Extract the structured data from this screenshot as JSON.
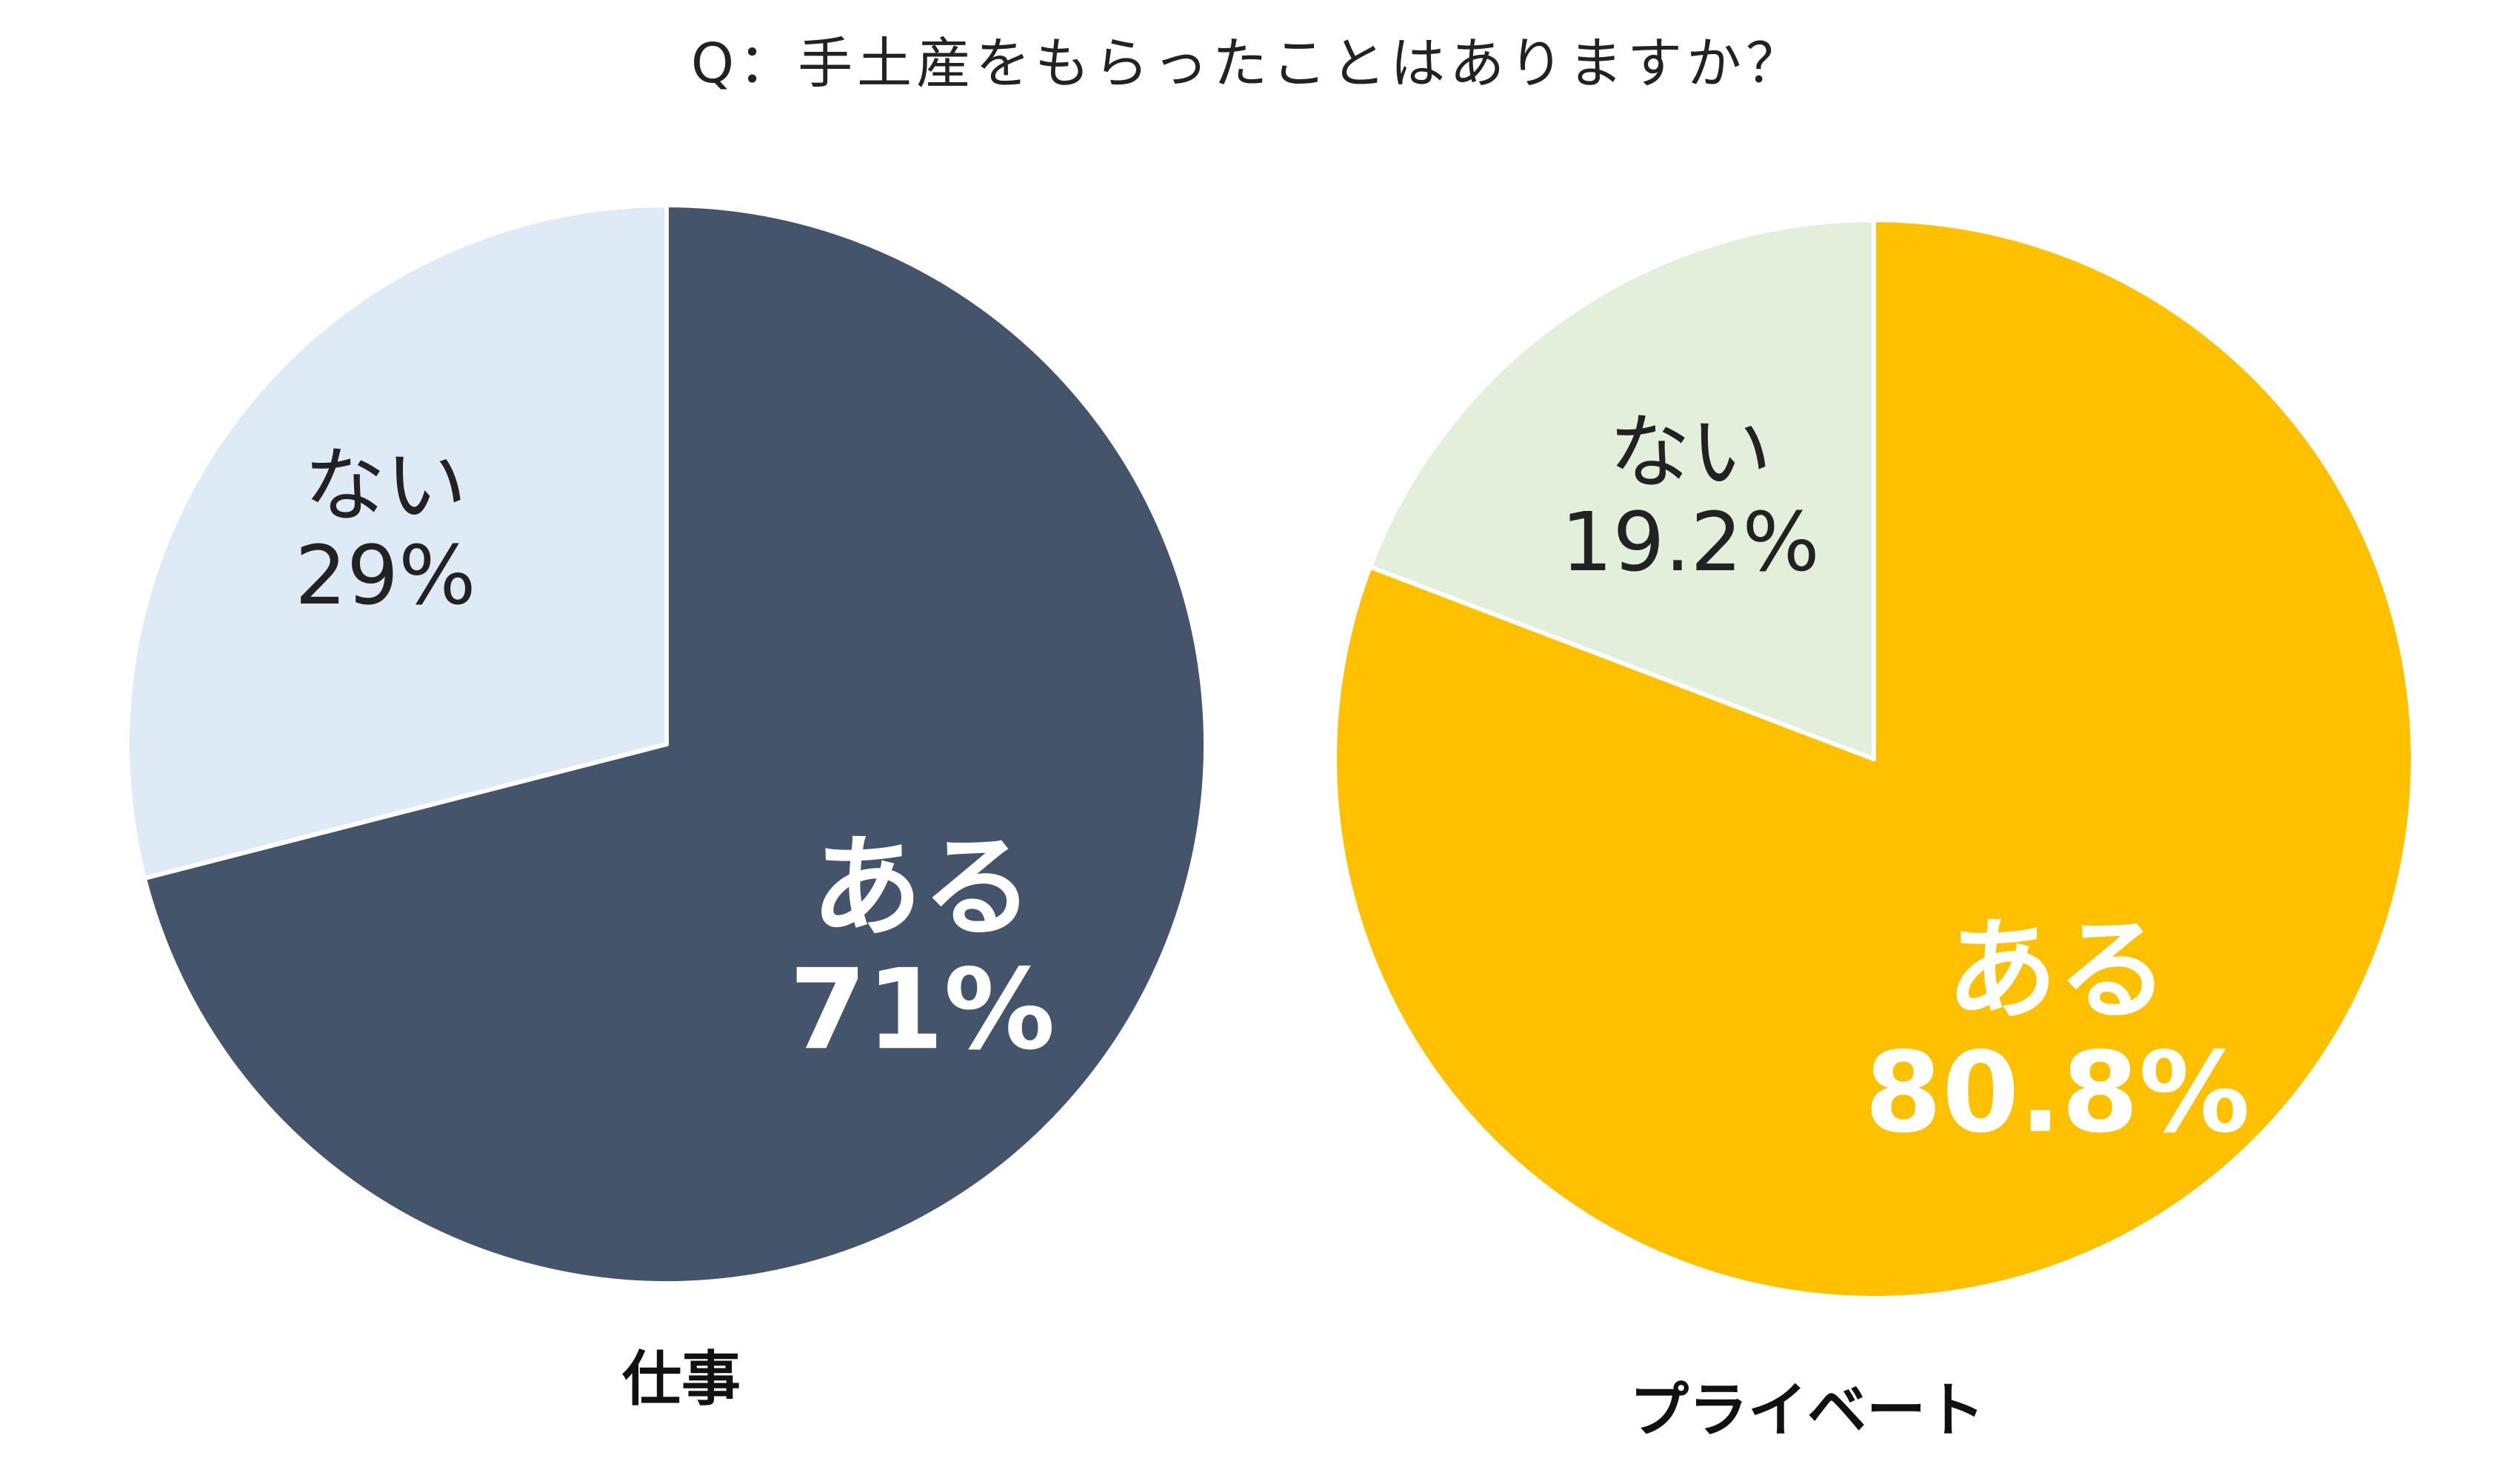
{
  "title": "Q：手土産をもらったことはありますか？",
  "chart_data": [
    {
      "type": "pie",
      "title": "仕事",
      "slices": [
        {
          "label": "ある",
          "value": 71,
          "value_label": "71%",
          "color": "#44546A",
          "text_color": "#ffffff"
        },
        {
          "label": "ない",
          "value": 29,
          "value_label": "29%",
          "color": "#DEEBF7",
          "text_color": "#222222"
        }
      ]
    },
    {
      "type": "pie",
      "title": "プライベート",
      "slices": [
        {
          "label": "ある",
          "value": 80.8,
          "value_label": "80.8%",
          "color": "#FFC000",
          "text_color": "#ffffff"
        },
        {
          "label": "ない",
          "value": 19.2,
          "value_label": "19.2%",
          "color": "#E2EFDA",
          "text_color": "#222222"
        }
      ]
    }
  ]
}
